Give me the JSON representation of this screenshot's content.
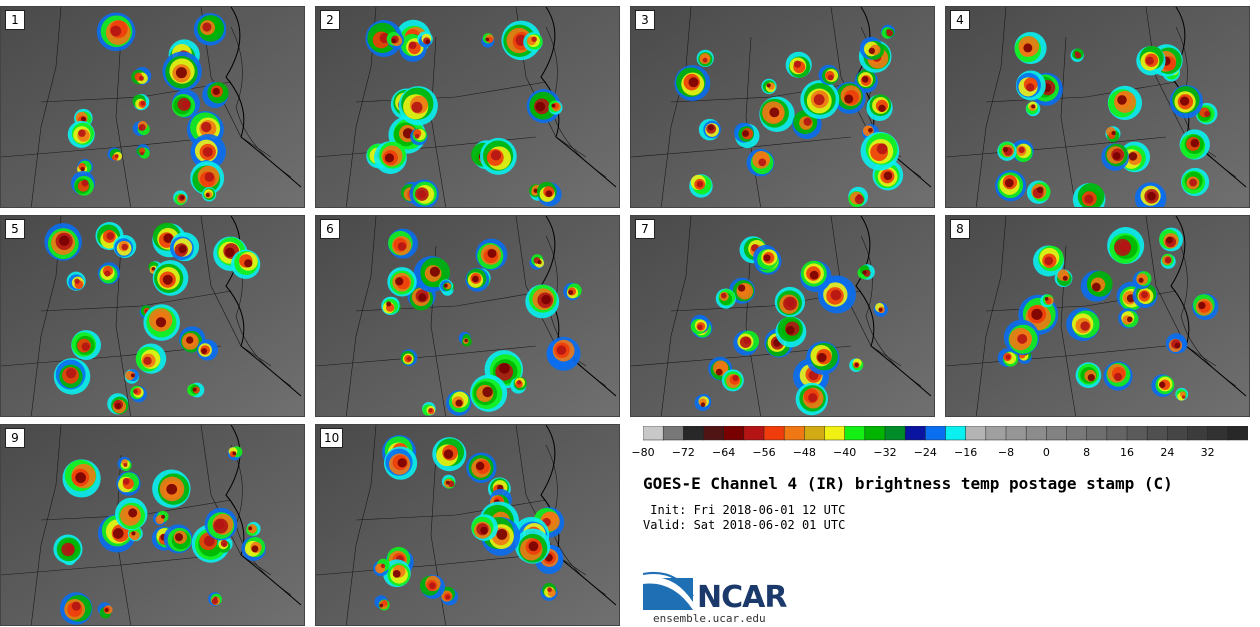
{
  "panels": [
    {
      "label": "1"
    },
    {
      "label": "2"
    },
    {
      "label": "3"
    },
    {
      "label": "4"
    },
    {
      "label": "5"
    },
    {
      "label": "6"
    },
    {
      "label": "7"
    },
    {
      "label": "8"
    },
    {
      "label": "9"
    },
    {
      "label": "10"
    }
  ],
  "colorbar": {
    "colors": [
      "#c8c8c8",
      "#787878",
      "#282828",
      "#501414",
      "#780000",
      "#b41414",
      "#f03c0a",
      "#f07814",
      "#d2aa14",
      "#f0f014",
      "#14f014",
      "#00b400",
      "#008c28",
      "#0a14a0",
      "#0a6ef0",
      "#0af0f0",
      "#b4b4b4",
      "#a0a0a0",
      "#969696",
      "#8c8c8c",
      "#828282",
      "#787878",
      "#6e6e6e",
      "#646464",
      "#5a5a5a",
      "#505050",
      "#464646",
      "#3c3c3c",
      "#323232",
      "#282828"
    ],
    "tick_labels": [
      "−80",
      "−72",
      "−64",
      "−56",
      "−48",
      "−40",
      "−32",
      "−24",
      "−16",
      "−8",
      "0",
      "8",
      "16",
      "24",
      "32"
    ]
  },
  "title": "GOES-E Channel 4 (IR) brightness temp postage stamp (C)",
  "init": " Init: Fri 2018-06-01 12 UTC",
  "valid": "Valid: Sat 2018-06-02 01 UTC",
  "logo": {
    "name": "NCAR",
    "url": "ensemble.ucar.edu"
  }
}
